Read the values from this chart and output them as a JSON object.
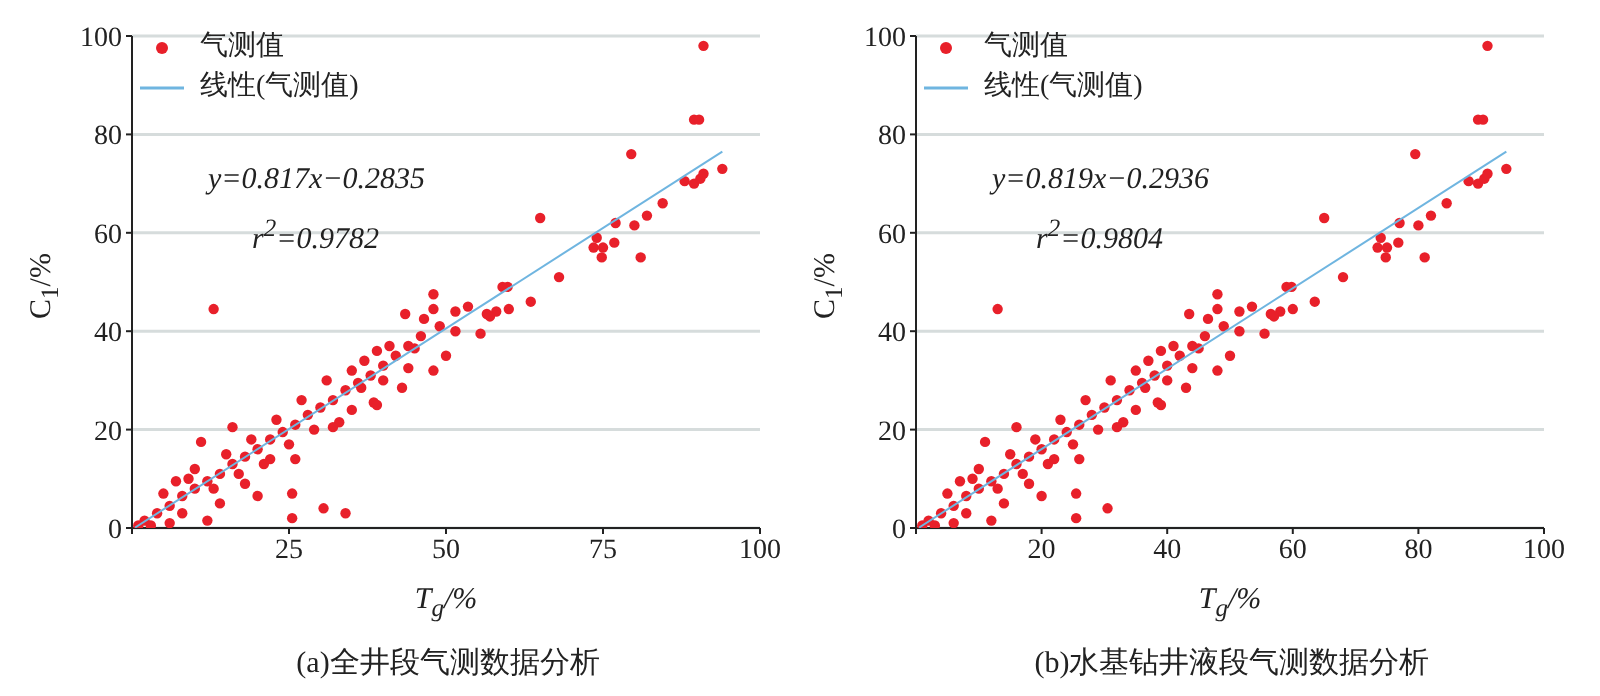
{
  "chart_data": [
    {
      "type": "scatter",
      "title": "(a)全井段气测数据分析",
      "xlabel": "T$_{g}$/%",
      "ylabel": "C$_{1}$/%",
      "annotations": [
        "y=0.817x−0.2835",
        "r$^{2}$=0.9782"
      ],
      "xlim": [
        0,
        100
      ],
      "ylim": [
        0,
        100
      ],
      "xticks": [
        {
          "value": 0,
          "label": null
        },
        25,
        50,
        75,
        100
      ],
      "yticks": [
        0,
        20,
        40,
        60,
        80,
        100
      ],
      "grid": "y",
      "legend": "top left",
      "series": [
        {
          "name": "气测值",
          "type": "scatter",
          "marker": "circle",
          "color": "#e8202a",
          "x": [
            91,
            89.5,
            90.3,
            79.5,
            88,
            89.5,
            90.5,
            91,
            94,
            74,
            73.5,
            75,
            74.8,
            76.8,
            77,
            80,
            81,
            82,
            84.5,
            65,
            68,
            63.5,
            59,
            59.8,
            60,
            58,
            57,
            56.5,
            55.5,
            53.5,
            51.5,
            51.5,
            50,
            48,
            48,
            48,
            49,
            46.5,
            43.5,
            45,
            44,
            43,
            38.5,
            39,
            36.5,
            34,
            30.5,
            25.5,
            25.5,
            13,
            11,
            16,
            20,
            12,
            6,
            7,
            33,
            32,
            2,
            4,
            6,
            8,
            10,
            12,
            14,
            16,
            18,
            20,
            22,
            24,
            26,
            28,
            30,
            32,
            34,
            36,
            38,
            40,
            42,
            44,
            46,
            5,
            9,
            13,
            15,
            17,
            19,
            21,
            23,
            25,
            27,
            29,
            31,
            35,
            37,
            39,
            41,
            1,
            3,
            8,
            10,
            14,
            18,
            22,
            26,
            35,
            40
          ],
          "values": [
            98,
            83,
            83,
            76,
            70.5,
            70,
            71,
            72,
            73,
            59,
            57,
            57,
            55,
            58,
            62,
            61.5,
            55,
            63.5,
            66,
            63,
            51,
            46,
            49,
            49,
            44.5,
            44,
            43,
            43.5,
            39.5,
            45,
            44,
            40,
            35,
            47.5,
            44.5,
            32,
            41,
            42.5,
            43.5,
            36.5,
            32.5,
            28.5,
            25.5,
            25,
            28.5,
            3,
            4,
            7,
            2,
            44.5,
            17.5,
            20.5,
            6.5,
            1.5,
            1,
            9.5,
            21.5,
            20.5,
            1.5,
            3,
            4.5,
            6.5,
            8,
            9.5,
            11,
            13,
            14.5,
            16,
            18,
            19.5,
            21,
            23,
            24.5,
            26,
            28,
            29.5,
            31,
            33,
            35,
            37,
            39,
            7,
            10,
            8,
            15,
            11,
            18,
            13,
            22,
            17,
            26,
            20,
            30,
            32,
            34,
            36,
            37,
            0.5,
            0.5,
            3,
            12,
            5,
            9,
            14,
            14,
            24,
            30
          ]
        },
        {
          "name": "线性(气测值)",
          "type": "line",
          "color": "#6fb5e0",
          "x": [
            0.5,
            94
          ],
          "values": [
            0.1,
            76.5
          ]
        }
      ]
    },
    {
      "type": "scatter",
      "title": "(b)水基钻井液段气测数据分析",
      "xlabel": "T$_{g}$/%",
      "ylabel": "C$_{1}$/%",
      "annotations": [
        "y=0.819x−0.2936",
        "r$^{2}$=0.9804"
      ],
      "xlim": [
        0,
        100
      ],
      "ylim": [
        0,
        100
      ],
      "xticks": [
        {
          "value": 0,
          "label": null
        },
        20,
        40,
        60,
        80,
        100
      ],
      "yticks": [
        0,
        20,
        40,
        60,
        80,
        100
      ],
      "grid": "y",
      "legend": "top left",
      "series": [
        {
          "name": "气测值",
          "type": "scatter",
          "marker": "circle",
          "color": "#e8202a",
          "x": [
            91,
            89.5,
            90.3,
            79.5,
            88,
            89.5,
            90.5,
            91,
            94,
            74,
            73.5,
            75,
            74.8,
            76.8,
            77,
            80,
            81,
            82,
            84.5,
            65,
            68,
            63.5,
            59,
            59.8,
            60,
            58,
            57,
            56.5,
            55.5,
            53.5,
            51.5,
            51.5,
            50,
            48,
            48,
            48,
            49,
            46.5,
            43.5,
            45,
            44,
            43,
            38.5,
            39,
            36.5,
            30.5,
            25.5,
            25.5,
            13,
            11,
            16,
            20,
            12,
            6,
            7,
            33,
            32,
            2,
            4,
            6,
            8,
            10,
            12,
            14,
            16,
            18,
            20,
            22,
            24,
            26,
            28,
            30,
            32,
            34,
            36,
            38,
            40,
            42,
            44,
            46,
            5,
            9,
            13,
            15,
            17,
            19,
            21,
            23,
            25,
            27,
            29,
            31,
            35,
            37,
            39,
            41,
            1,
            3,
            8,
            10,
            14,
            18,
            22,
            26,
            35,
            40
          ],
          "values": [
            98,
            83,
            83,
            76,
            70.5,
            70,
            71,
            72,
            73,
            59,
            57,
            57,
            55,
            58,
            62,
            61.5,
            55,
            63.5,
            66,
            63,
            51,
            46,
            49,
            49,
            44.5,
            44,
            43,
            43.5,
            39.5,
            45,
            44,
            40,
            35,
            47.5,
            44.5,
            32,
            41,
            42.5,
            43.5,
            36.5,
            32.5,
            28.5,
            25.5,
            25,
            28.5,
            4,
            7,
            2,
            44.5,
            17.5,
            20.5,
            6.5,
            1.5,
            1,
            9.5,
            21.5,
            20.5,
            1.5,
            3,
            4.5,
            6.5,
            8,
            9.5,
            11,
            13,
            14.5,
            16,
            18,
            19.5,
            21,
            23,
            24.5,
            26,
            28,
            29.5,
            31,
            33,
            35,
            37,
            39,
            7,
            10,
            8,
            15,
            11,
            18,
            13,
            22,
            17,
            26,
            20,
            30,
            32,
            34,
            36,
            37,
            0.5,
            0.5,
            3,
            12,
            5,
            9,
            14,
            14,
            24,
            30
          ]
        },
        {
          "name": "线性(气测值)",
          "type": "line",
          "color": "#6fb5e0",
          "x": [
            0.5,
            94
          ],
          "values": [
            0.1,
            76.5
          ]
        }
      ]
    }
  ]
}
